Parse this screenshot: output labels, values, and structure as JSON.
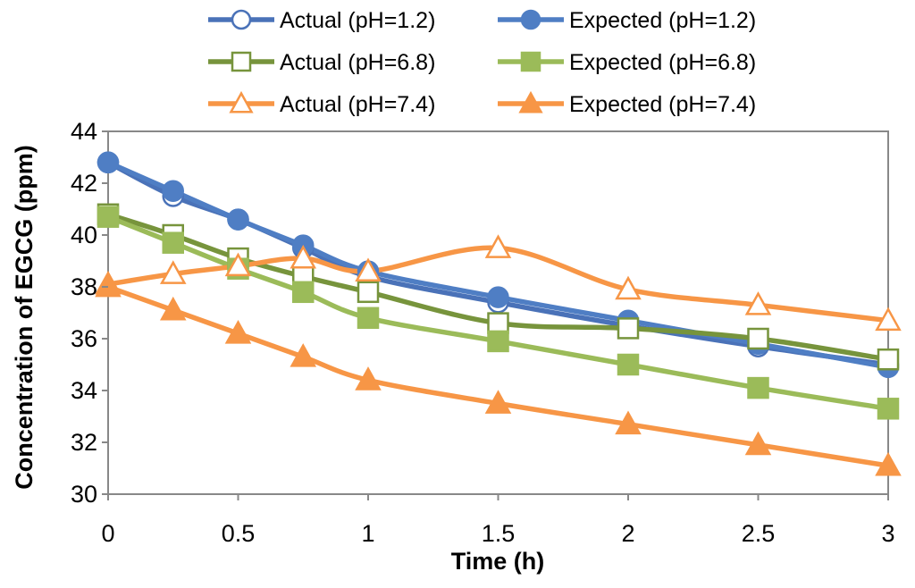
{
  "chart_data": {
    "type": "line",
    "title": "",
    "xlabel": "Time (h)",
    "ylabel": "Concentration of EGCG (ppm)",
    "xlim": [
      0,
      3
    ],
    "ylim": [
      30,
      44
    ],
    "x_ticks": [
      "0",
      "0.5",
      "1",
      "1.5",
      "2",
      "2.5",
      "3"
    ],
    "y_ticks": [
      "30",
      "32",
      "34",
      "36",
      "38",
      "40",
      "42",
      "44"
    ],
    "grid": false,
    "legend_position": "top",
    "series": [
      {
        "name": "Actual (pH=1.2)",
        "color": "#4a72b8",
        "marker": "circle",
        "filled": false,
        "x": [
          0,
          0.25,
          0.5,
          0.75,
          1,
          1.5,
          2,
          2.5,
          3
        ],
        "y": [
          42.8,
          41.5,
          40.6,
          39.5,
          38.4,
          37.4,
          36.5,
          35.7,
          35.0
        ]
      },
      {
        "name": "Expected (pH=1.2)",
        "color": "#4f7ec4",
        "marker": "circle",
        "filled": true,
        "x": [
          0,
          0.25,
          0.5,
          0.75,
          1,
          1.5,
          2,
          2.5,
          3
        ],
        "y": [
          42.8,
          41.7,
          40.6,
          39.6,
          38.6,
          37.6,
          36.7,
          35.8,
          34.9
        ]
      },
      {
        "name": "Actual (pH=6.8)",
        "color": "#77943c",
        "marker": "square",
        "filled": false,
        "x": [
          0,
          0.25,
          0.5,
          0.75,
          1,
          1.5,
          2,
          2.5,
          3
        ],
        "y": [
          40.8,
          40.0,
          39.1,
          38.4,
          37.8,
          36.6,
          36.4,
          36.0,
          35.2
        ]
      },
      {
        "name": "Expected (pH=6.8)",
        "color": "#9bbb59",
        "marker": "square",
        "filled": true,
        "x": [
          0,
          0.25,
          0.5,
          0.75,
          1,
          1.5,
          2,
          2.5,
          3
        ],
        "y": [
          40.7,
          39.7,
          38.7,
          37.8,
          36.8,
          35.9,
          35.0,
          34.1,
          33.3
        ]
      },
      {
        "name": "Actual (pH=7.4)",
        "color": "#f79646",
        "marker": "triangle",
        "filled": false,
        "x": [
          0,
          0.25,
          0.5,
          0.75,
          1,
          1.5,
          2,
          2.5,
          3
        ],
        "y": [
          38.1,
          38.5,
          38.8,
          39.1,
          38.6,
          39.5,
          37.9,
          37.3,
          36.7
        ]
      },
      {
        "name": "Expected (pH=7.4)",
        "color": "#f79646",
        "marker": "triangle",
        "filled": true,
        "x": [
          0,
          0.25,
          0.5,
          0.75,
          1,
          1.5,
          2,
          2.5,
          3
        ],
        "y": [
          38.0,
          37.1,
          36.2,
          35.3,
          34.4,
          33.5,
          32.7,
          31.9,
          31.1
        ]
      }
    ]
  }
}
